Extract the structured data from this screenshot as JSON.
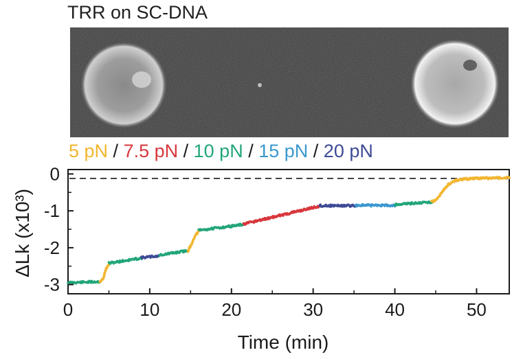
{
  "figure_title": "TRR on SC-DNA",
  "micrograph": {
    "alt": "fluorescence image: two beads tethering supercoiled DNA"
  },
  "force_legend": {
    "separator": "/",
    "items": [
      {
        "label": "5 pN",
        "color": "#f2b630"
      },
      {
        "label": "7.5 pN",
        "color": "#d8373c"
      },
      {
        "label": "10 pN",
        "color": "#22a57a"
      },
      {
        "label": "15 pN",
        "color": "#3a98cf"
      },
      {
        "label": "20 pN",
        "color": "#3e4b96"
      }
    ]
  },
  "chart_data": {
    "type": "line",
    "title": "",
    "xlabel": "Time (min)",
    "ylabel": "ΔLk (x10³)",
    "xlim": [
      0,
      54
    ],
    "ylim": [
      -3.25,
      0.12
    ],
    "xticks": [
      0,
      10,
      20,
      30,
      40,
      50
    ],
    "yticks": [
      0,
      -1,
      -2,
      -3
    ],
    "reference_line": {
      "y": -0.12,
      "style": "dashed"
    },
    "series": [
      {
        "force": "10 pN",
        "color": "#22a57a",
        "x": [
          0,
          3.9
        ],
        "y": [
          -2.95,
          -2.92
        ]
      },
      {
        "force": "5 pN",
        "color": "#f2b630",
        "x": [
          3.9,
          4.3,
          4.6,
          5.0
        ],
        "y": [
          -2.92,
          -2.85,
          -2.6,
          -2.45
        ]
      },
      {
        "force": "10 pN",
        "color": "#22a57a",
        "x": [
          5.0,
          9.0
        ],
        "y": [
          -2.42,
          -2.28
        ]
      },
      {
        "force": "20 pN",
        "color": "#3e4b96",
        "x": [
          9.0,
          11.2
        ],
        "y": [
          -2.27,
          -2.22
        ]
      },
      {
        "force": "10 pN",
        "color": "#22a57a",
        "x": [
          11.2,
          14.7
        ],
        "y": [
          -2.2,
          -2.08
        ]
      },
      {
        "force": "5 pN",
        "color": "#f2b630",
        "x": [
          14.7,
          15.0,
          15.5,
          16.0
        ],
        "y": [
          -2.08,
          -1.95,
          -1.7,
          -1.55
        ]
      },
      {
        "force": "10 pN",
        "color": "#22a57a",
        "x": [
          16.0,
          21.5
        ],
        "y": [
          -1.53,
          -1.37
        ]
      },
      {
        "force": "7.5 pN",
        "color": "#d8373c",
        "x": [
          21.5,
          30.8
        ],
        "y": [
          -1.36,
          -0.87
        ]
      },
      {
        "force": "20 pN",
        "color": "#3e4b96",
        "x": [
          30.8,
          35.2
        ],
        "y": [
          -0.86,
          -0.86
        ]
      },
      {
        "force": "15 pN",
        "color": "#3a98cf",
        "x": [
          35.2,
          40.0
        ],
        "y": [
          -0.85,
          -0.85
        ]
      },
      {
        "force": "10 pN",
        "color": "#22a57a",
        "x": [
          40.0,
          44.5
        ],
        "y": [
          -0.83,
          -0.76
        ]
      },
      {
        "force": "5 pN",
        "color": "#f2b630",
        "x": [
          44.5,
          45.0,
          45.5,
          46.0,
          46.5,
          47.0,
          47.5,
          48.0,
          48.5,
          49.0,
          49.5,
          50.0,
          54.0
        ],
        "y": [
          -0.74,
          -0.72,
          -0.58,
          -0.42,
          -0.3,
          -0.22,
          -0.17,
          -0.15,
          -0.14,
          -0.13,
          -0.13,
          -0.12,
          -0.1
        ]
      }
    ]
  }
}
